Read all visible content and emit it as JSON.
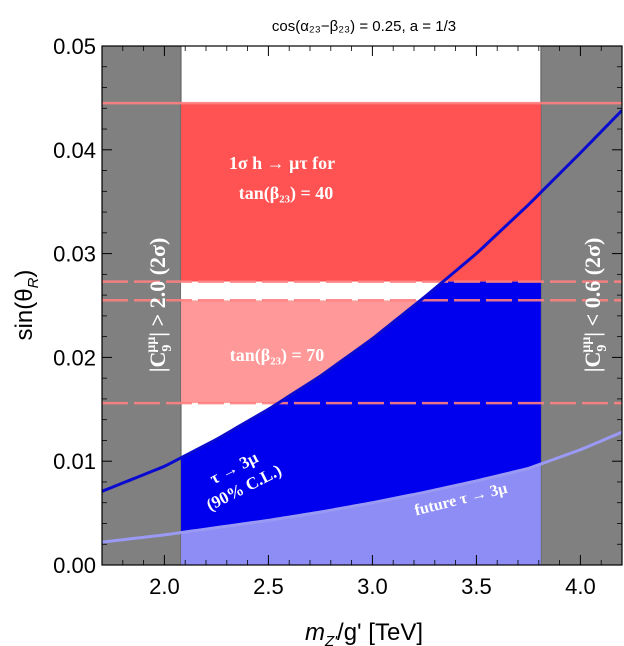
{
  "chart_data": {
    "type": "area",
    "title": "cos(α₂₃−β₂₃) = 0.25, a = 1/3",
    "xlabel": "m",
    "xlabel_sub": "Z'",
    "xlabel_rest": "/g' [TeV]",
    "ylabel": "sin(θ",
    "ylabel_sub": "R",
    "ylabel_end": ")",
    "xlim": [
      1.7,
      4.2
    ],
    "ylim": [
      0.0,
      0.05
    ],
    "xticks": [
      2.0,
      2.5,
      3.0,
      3.5,
      4.0
    ],
    "xtick_labels": [
      "2.0",
      "2.5",
      "3.0",
      "3.5",
      "4.0"
    ],
    "yticks": [
      0.0,
      0.01,
      0.02,
      0.03,
      0.04,
      0.05
    ],
    "ytick_labels": [
      "0.00",
      "0.01",
      "0.02",
      "0.03",
      "0.04",
      "0.05"
    ],
    "colors": {
      "excluded_gray": "#808080",
      "tan40_band": "#ff5252",
      "tan70_band": "#ff9898",
      "tau3mu_current": "#0000ee",
      "tau3mu_future": "#8d8df5",
      "current_curve": "#0a0ad0",
      "future_curve": "#9a9af5",
      "band_edge_dashes": "#ff8080"
    },
    "excluded_regions": [
      {
        "x": [
          1.7,
          2.08
        ],
        "label": "|C₉^μμ| > 2.0 (2σ)",
        "label_main": "|C",
        "label_sub": "9",
        "label_sup": "μμ",
        "label_end": "| > 2.0 (2σ)"
      },
      {
        "x": [
          3.81,
          4.2
        ],
        "label": "|C₉^μμ| < 0.6 (2σ)",
        "label_main": "|C",
        "label_sub": "9",
        "label_sup": "μμ",
        "label_end": "| < 0.6 (2σ)"
      }
    ],
    "bands": [
      {
        "name": "tan(β₂₃) = 40",
        "y": [
          0.0273,
          0.0445
        ],
        "label_line1": "1σ h → μτ for",
        "label_line2": "tan(β₂₃) = 40"
      },
      {
        "name": "tan(β₂₃) = 70",
        "y": [
          0.0156,
          0.0255
        ],
        "label_line1": "tan(β₂₃) = 70"
      }
    ],
    "series": [
      {
        "name": "τ → 3μ (90% C.L.)",
        "label_line1": "τ → 3μ",
        "label_line2": "(90% C.L.)",
        "x": [
          1.7,
          2.0,
          2.25,
          2.5,
          2.75,
          3.0,
          3.25,
          3.5,
          3.75,
          4.0,
          4.2
        ],
        "y": [
          0.0071,
          0.0095,
          0.0121,
          0.015,
          0.0182,
          0.0218,
          0.0258,
          0.03,
          0.0347,
          0.0397,
          0.0438
        ]
      },
      {
        "name": "future τ → 3μ",
        "label_line1": "future τ → 3μ",
        "x": [
          1.7,
          2.0,
          2.25,
          2.5,
          2.75,
          3.0,
          3.25,
          3.5,
          3.75,
          4.0,
          4.2
        ],
        "y": [
          0.0022,
          0.0029,
          0.0036,
          0.0043,
          0.0051,
          0.006,
          0.007,
          0.0081,
          0.0093,
          0.0111,
          0.0128
        ]
      }
    ]
  }
}
